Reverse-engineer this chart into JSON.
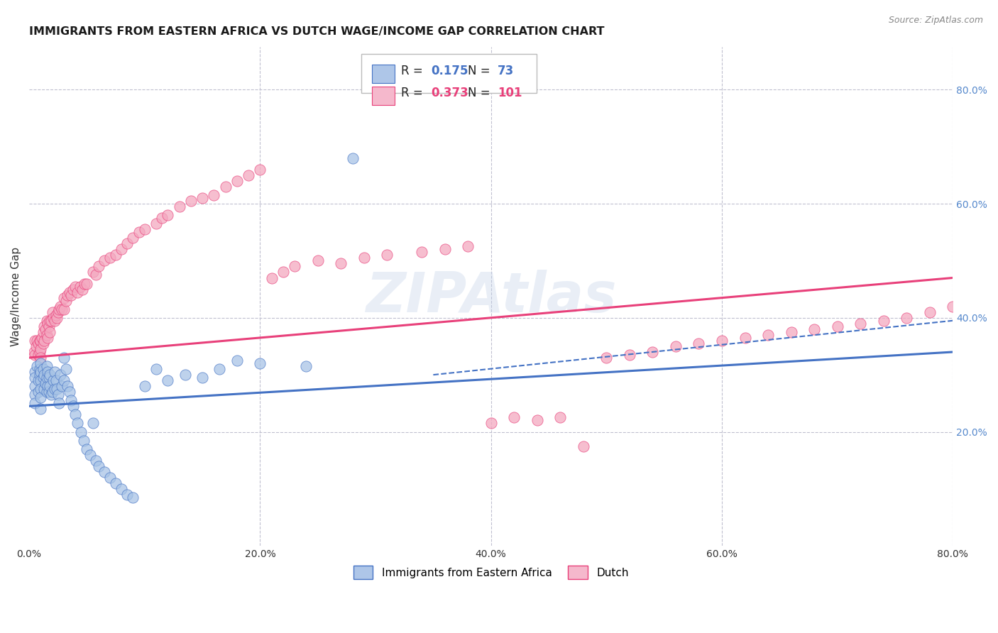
{
  "title": "IMMIGRANTS FROM EASTERN AFRICA VS DUTCH WAGE/INCOME GAP CORRELATION CHART",
  "source": "Source: ZipAtlas.com",
  "ylabel": "Wage/Income Gap",
  "watermark": "ZIPAtlas",
  "legend_labels": [
    "Immigrants from Eastern Africa",
    "Dutch"
  ],
  "blue_R": "0.175",
  "blue_N": "73",
  "pink_R": "0.373",
  "pink_N": "101",
  "blue_color": "#a8c4e6",
  "pink_color": "#f4a8c0",
  "blue_line_color": "#4472c4",
  "pink_line_color": "#e8407a",
  "blue_fill_color": "#aec6e8",
  "pink_fill_color": "#f5b8cc",
  "background_color": "#ffffff",
  "grid_color": "#c0c0d0",
  "right_axis_color": "#5588cc",
  "xlim": [
    0.0,
    0.8
  ],
  "ylim": [
    0.0,
    0.875
  ],
  "blue_scatter_x": [
    0.005,
    0.005,
    0.005,
    0.005,
    0.005,
    0.007,
    0.008,
    0.008,
    0.009,
    0.009,
    0.01,
    0.01,
    0.01,
    0.01,
    0.01,
    0.01,
    0.012,
    0.012,
    0.013,
    0.013,
    0.014,
    0.015,
    0.015,
    0.015,
    0.016,
    0.016,
    0.017,
    0.017,
    0.018,
    0.018,
    0.019,
    0.02,
    0.021,
    0.022,
    0.022,
    0.023,
    0.024,
    0.025,
    0.026,
    0.027,
    0.028,
    0.03,
    0.03,
    0.032,
    0.033,
    0.035,
    0.036,
    0.038,
    0.04,
    0.042,
    0.045,
    0.047,
    0.05,
    0.053,
    0.055,
    0.058,
    0.06,
    0.065,
    0.07,
    0.075,
    0.08,
    0.085,
    0.09,
    0.1,
    0.11,
    0.12,
    0.135,
    0.15,
    0.165,
    0.18,
    0.2,
    0.24,
    0.28
  ],
  "blue_scatter_y": [
    0.305,
    0.295,
    0.28,
    0.265,
    0.25,
    0.315,
    0.29,
    0.27,
    0.31,
    0.3,
    0.32,
    0.305,
    0.29,
    0.275,
    0.26,
    0.24,
    0.31,
    0.295,
    0.3,
    0.275,
    0.285,
    0.315,
    0.295,
    0.27,
    0.305,
    0.28,
    0.295,
    0.27,
    0.3,
    0.28,
    0.265,
    0.27,
    0.29,
    0.305,
    0.275,
    0.29,
    0.275,
    0.265,
    0.25,
    0.3,
    0.28,
    0.33,
    0.29,
    0.31,
    0.28,
    0.27,
    0.255,
    0.245,
    0.23,
    0.215,
    0.2,
    0.185,
    0.17,
    0.16,
    0.215,
    0.15,
    0.14,
    0.13,
    0.12,
    0.11,
    0.1,
    0.09,
    0.085,
    0.28,
    0.31,
    0.29,
    0.3,
    0.295,
    0.31,
    0.325,
    0.32,
    0.315,
    0.68
  ],
  "pink_scatter_x": [
    0.004,
    0.005,
    0.005,
    0.006,
    0.007,
    0.008,
    0.008,
    0.009,
    0.009,
    0.01,
    0.01,
    0.01,
    0.011,
    0.012,
    0.012,
    0.013,
    0.013,
    0.014,
    0.015,
    0.015,
    0.016,
    0.016,
    0.017,
    0.018,
    0.018,
    0.019,
    0.02,
    0.021,
    0.022,
    0.023,
    0.024,
    0.025,
    0.026,
    0.027,
    0.028,
    0.03,
    0.03,
    0.032,
    0.033,
    0.035,
    0.036,
    0.038,
    0.04,
    0.042,
    0.044,
    0.046,
    0.048,
    0.05,
    0.055,
    0.058,
    0.06,
    0.065,
    0.07,
    0.075,
    0.08,
    0.085,
    0.09,
    0.095,
    0.1,
    0.11,
    0.115,
    0.12,
    0.13,
    0.14,
    0.15,
    0.16,
    0.17,
    0.18,
    0.19,
    0.2,
    0.21,
    0.22,
    0.23,
    0.25,
    0.27,
    0.29,
    0.31,
    0.34,
    0.36,
    0.38,
    0.4,
    0.42,
    0.44,
    0.46,
    0.48,
    0.5,
    0.52,
    0.54,
    0.56,
    0.58,
    0.6,
    0.62,
    0.64,
    0.66,
    0.68,
    0.7,
    0.72,
    0.74,
    0.76,
    0.78,
    0.8
  ],
  "pink_scatter_y": [
    0.34,
    0.36,
    0.335,
    0.35,
    0.36,
    0.355,
    0.335,
    0.36,
    0.34,
    0.36,
    0.345,
    0.33,
    0.365,
    0.375,
    0.355,
    0.385,
    0.36,
    0.38,
    0.395,
    0.37,
    0.39,
    0.365,
    0.385,
    0.395,
    0.375,
    0.395,
    0.41,
    0.4,
    0.395,
    0.405,
    0.4,
    0.41,
    0.415,
    0.42,
    0.415,
    0.435,
    0.415,
    0.43,
    0.44,
    0.445,
    0.44,
    0.45,
    0.455,
    0.445,
    0.455,
    0.45,
    0.46,
    0.46,
    0.48,
    0.475,
    0.49,
    0.5,
    0.505,
    0.51,
    0.52,
    0.53,
    0.54,
    0.55,
    0.555,
    0.565,
    0.575,
    0.58,
    0.595,
    0.605,
    0.61,
    0.615,
    0.63,
    0.64,
    0.65,
    0.66,
    0.47,
    0.48,
    0.49,
    0.5,
    0.495,
    0.505,
    0.51,
    0.515,
    0.52,
    0.525,
    0.215,
    0.225,
    0.22,
    0.225,
    0.175,
    0.33,
    0.335,
    0.34,
    0.35,
    0.355,
    0.36,
    0.365,
    0.37,
    0.375,
    0.38,
    0.385,
    0.39,
    0.395,
    0.4,
    0.41,
    0.42
  ]
}
